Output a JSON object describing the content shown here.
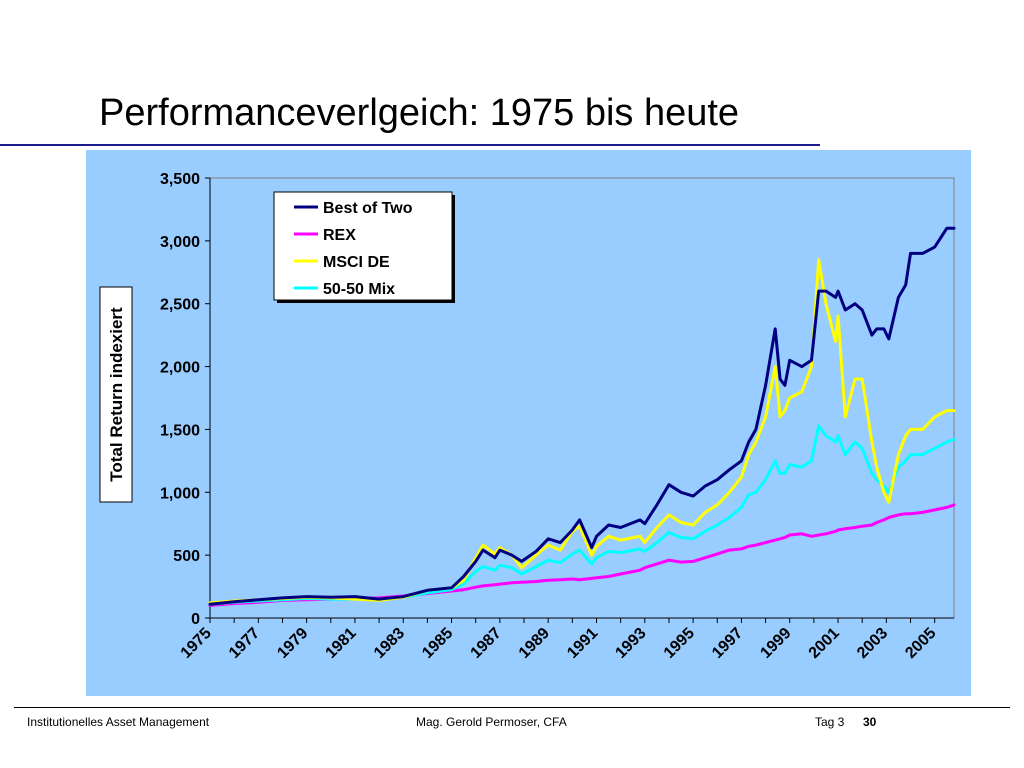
{
  "slide": {
    "title": "Performanceverlgeich: 1975 bis heute"
  },
  "footer": {
    "left": "Institutionelles Asset Management",
    "center": "Mag. Gerold Permoser, CFA",
    "day": "Tag 3",
    "page": "30"
  },
  "colors": {
    "panel_bg": "#99ccff",
    "plot_bg": "#99ccff",
    "best_of_two": "#000080",
    "rex": "#ff00ff",
    "msci_de": "#ffff00",
    "mix_50_50": "#00ffff"
  },
  "chart_data": {
    "type": "line",
    "title": "",
    "xlabel": "",
    "ylabel": "Total Return indexiert",
    "xlim": [
      1975,
      2005.8
    ],
    "ylim": [
      0,
      3500
    ],
    "grid": false,
    "legend_position": "top-center",
    "x_ticks": [
      "1975",
      "1977",
      "1979",
      "1981",
      "1983",
      "1985",
      "1987",
      "1989",
      "1991",
      "1993",
      "1995",
      "1997",
      "1999",
      "2001",
      "2003",
      "2005"
    ],
    "y_ticks": [
      "0",
      "500",
      "1,000",
      "1,500",
      "2,000",
      "2,500",
      "3,000",
      "3,500"
    ],
    "x": [
      1975,
      1976,
      1977,
      1978,
      1979,
      1980,
      1981,
      1982,
      1983,
      1984,
      1985,
      1985.5,
      1986,
      1986.3,
      1986.8,
      1987,
      1987.5,
      1987.9,
      1988.5,
      1989,
      1989.5,
      1990,
      1990.3,
      1990.8,
      1991,
      1991.5,
      1992,
      1992.8,
      1993,
      1993.5,
      1994,
      1994.5,
      1995,
      1995.5,
      1996,
      1996.5,
      1997,
      1997.3,
      1997.6,
      1998,
      1998.4,
      1998.6,
      1998.8,
      1999,
      1999.5,
      1999.9,
      2000.2,
      2000.5,
      2000.9,
      2001,
      2001.3,
      2001.7,
      2002,
      2002.4,
      2002.6,
      2002.9,
      2003.1,
      2003.5,
      2003.8,
      2004,
      2004.5,
      2005,
      2005.5,
      2005.8
    ],
    "series": [
      {
        "name": "Best of Two",
        "color": "#000080",
        "values": [
          110,
          130,
          145,
          160,
          170,
          165,
          170,
          150,
          170,
          220,
          240,
          330,
          450,
          540,
          480,
          540,
          500,
          450,
          530,
          630,
          600,
          700,
          780,
          560,
          650,
          740,
          720,
          780,
          750,
          900,
          1060,
          1000,
          970,
          1050,
          1100,
          1180,
          1250,
          1400,
          1500,
          1850,
          2300,
          1900,
          1850,
          2050,
          2000,
          2050,
          2600,
          2600,
          2550,
          2600,
          2450,
          2500,
          2450,
          2250,
          2300,
          2300,
          2220,
          2550,
          2650,
          2900,
          2900,
          2950,
          3100,
          3100
        ]
      },
      {
        "name": "REX",
        "color": "#ff00ff",
        "values": [
          100,
          115,
          125,
          140,
          145,
          150,
          155,
          160,
          175,
          195,
          215,
          225,
          245,
          255,
          265,
          270,
          280,
          285,
          290,
          300,
          305,
          310,
          305,
          315,
          320,
          330,
          350,
          380,
          400,
          430,
          460,
          445,
          450,
          480,
          510,
          540,
          550,
          570,
          580,
          600,
          620,
          630,
          640,
          660,
          670,
          650,
          660,
          670,
          690,
          700,
          710,
          720,
          730,
          740,
          760,
          780,
          800,
          820,
          830,
          830,
          840,
          860,
          880,
          900
        ]
      },
      {
        "name": "MSCI DE",
        "color": "#ffff00",
        "values": [
          120,
          135,
          145,
          155,
          165,
          160,
          150,
          140,
          165,
          220,
          240,
          300,
          480,
          580,
          510,
          560,
          500,
          400,
          500,
          580,
          540,
          690,
          730,
          500,
          570,
          650,
          620,
          650,
          600,
          720,
          820,
          760,
          740,
          840,
          900,
          1000,
          1120,
          1300,
          1400,
          1600,
          2000,
          1600,
          1650,
          1750,
          1800,
          2000,
          2850,
          2500,
          2200,
          2400,
          1600,
          1900,
          1900,
          1400,
          1200,
          1000,
          920,
          1300,
          1450,
          1500,
          1500,
          1600,
          1650,
          1650
        ]
      },
      {
        "name": "50-50 Mix",
        "color": "#00ffff",
        "values": [
          110,
          125,
          135,
          145,
          155,
          150,
          150,
          145,
          165,
          200,
          225,
          270,
          370,
          410,
          380,
          420,
          400,
          350,
          410,
          460,
          440,
          510,
          540,
          430,
          480,
          530,
          520,
          550,
          530,
          600,
          680,
          640,
          630,
          690,
          740,
          800,
          880,
          980,
          1000,
          1100,
          1250,
          1150,
          1150,
          1220,
          1200,
          1250,
          1530,
          1450,
          1400,
          1450,
          1300,
          1400,
          1350,
          1150,
          1100,
          1050,
          1000,
          1200,
          1250,
          1300,
          1300,
          1350,
          1400,
          1420
        ]
      }
    ]
  }
}
